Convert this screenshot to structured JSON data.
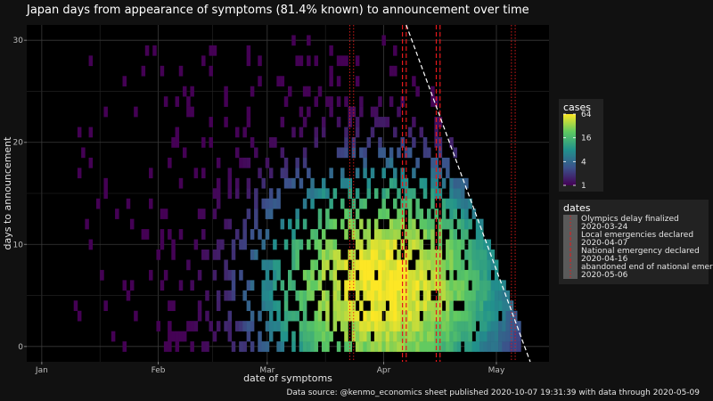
{
  "chart_data": {
    "type": "heatmap",
    "title": "Japan days from appearance of symptoms (81.4% known) to announcement over time",
    "xlabel": "date of symptoms",
    "ylabel": "days to announcement",
    "x_ticks": [
      {
        "label": "Jan",
        "date": "2020-01-01"
      },
      {
        "label": "Feb",
        "date": "2020-02-01"
      },
      {
        "label": "Mar",
        "date": "2020-03-01"
      },
      {
        "label": "Apr",
        "date": "2020-04-01"
      },
      {
        "label": "May",
        "date": "2020-05-01"
      }
    ],
    "x_range": [
      "2019-12-28",
      "2020-05-15"
    ],
    "y_ticks": [
      0,
      10,
      20,
      30
    ],
    "y_range": [
      -1.5,
      31.5
    ],
    "color_legend": {
      "title": "cases",
      "scale": "log",
      "ticks": [
        64,
        16,
        4,
        1
      ],
      "colors": [
        "#440154",
        "#3b528b",
        "#21918c",
        "#5ec962",
        "#fde725"
      ]
    },
    "dates_legend": {
      "title": "dates",
      "entries": [
        {
          "label": "Olympics delay finalized",
          "date": "2020-03-24",
          "style": "dotted"
        },
        {
          "label": "Local emergencies declared",
          "date": "2020-04-07",
          "style": "dashed"
        },
        {
          "label": "National emergency declared",
          "date": "2020-04-16",
          "style": "dashed"
        },
        {
          "label": "abandoned end of national emergency",
          "date": "2020-05-06",
          "style": "dotted"
        }
      ]
    },
    "vertical_lines": [
      {
        "date": "2020-03-23",
        "style": "dotted"
      },
      {
        "date": "2020-03-24",
        "style": "dotted"
      },
      {
        "date": "2020-04-06",
        "style": "dashed"
      },
      {
        "date": "2020-04-07",
        "style": "dashed"
      },
      {
        "date": "2020-04-15",
        "style": "dashed"
      },
      {
        "date": "2020-04-16",
        "style": "dashed"
      },
      {
        "date": "2020-05-05",
        "style": "dotted"
      },
      {
        "date": "2020-05-06",
        "style": "dotted"
      }
    ],
    "data_through_line": {
      "date": "2020-05-09",
      "style": "dashed",
      "color": "#ffffff"
    },
    "line_color": "#e41a1c",
    "grid": true,
    "legend_position": "right"
  },
  "caption": "Data source: @kenmo_economics sheet published 2020-10-07 19:31:39 with data through 2020-05-09"
}
